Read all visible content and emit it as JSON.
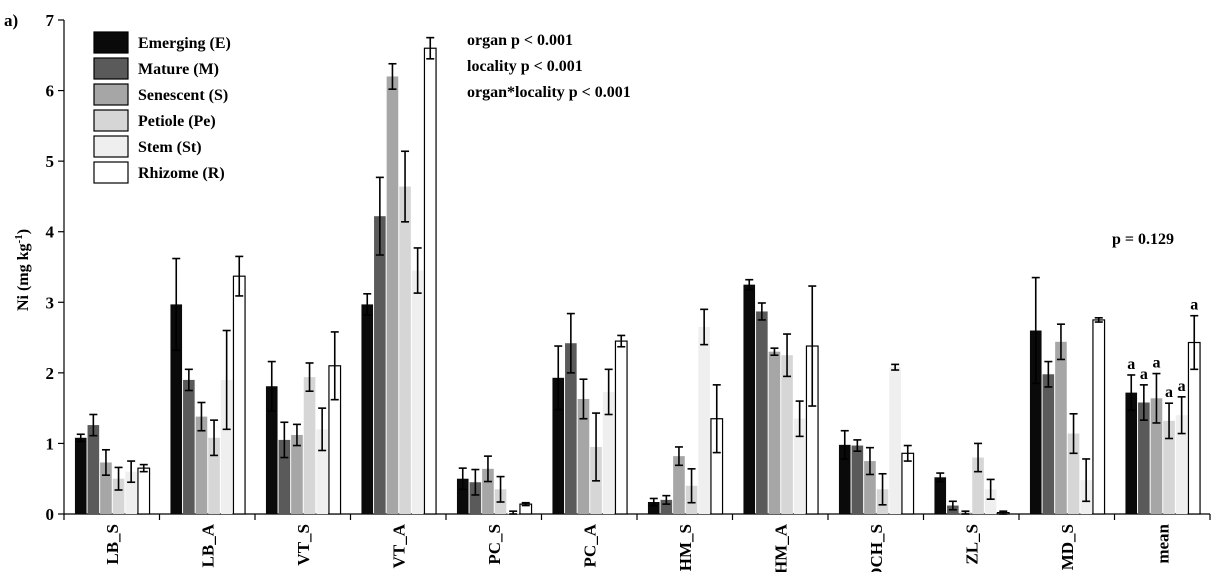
{
  "panel_label": "a)",
  "chart_data": {
    "type": "bar",
    "ylabel_main": "Ni (mg kg",
    "ylabel_sup": "-1",
    "ylabel_close": ")",
    "ylim": [
      0,
      7
    ],
    "yticks": [
      0,
      1,
      2,
      3,
      4,
      5,
      6,
      7
    ],
    "categories": [
      "LB_S",
      "LB_A",
      "VT_S",
      "VT_A",
      "PC_S",
      "PC_A",
      "HM_S",
      "HM_A",
      "OCH_S",
      "ZL_S",
      "MD_S",
      "mean"
    ],
    "series": [
      {
        "name": "Emerging (E)",
        "color": "#0a0a0a",
        "values": [
          1.08,
          2.97,
          1.81,
          2.97,
          0.5,
          1.93,
          0.17,
          3.25,
          0.98,
          0.52,
          2.6,
          1.72
        ],
        "errors": [
          0.05,
          0.65,
          0.35,
          0.15,
          0.15,
          0.45,
          0.05,
          0.07,
          0.2,
          0.06,
          0.75,
          0.25
        ]
      },
      {
        "name": "Mature (M)",
        "color": "#5a5a5a",
        "values": [
          1.26,
          1.9,
          1.05,
          4.22,
          0.45,
          2.42,
          0.2,
          2.87,
          0.97,
          0.12,
          1.98,
          1.58
        ],
        "errors": [
          0.15,
          0.15,
          0.25,
          0.55,
          0.18,
          0.42,
          0.06,
          0.12,
          0.08,
          0.06,
          0.18,
          0.25
        ]
      },
      {
        "name": "Senescent (S)",
        "color": "#a6a6a6",
        "values": [
          0.73,
          1.38,
          1.12,
          6.2,
          0.64,
          1.63,
          0.82,
          2.3,
          0.75,
          0.02,
          2.44,
          1.64
        ],
        "errors": [
          0.18,
          0.2,
          0.15,
          0.18,
          0.18,
          0.28,
          0.13,
          0.05,
          0.19,
          0.02,
          0.25,
          0.35
        ]
      },
      {
        "name": "Petiole (Pe)",
        "color": "#d6d6d6",
        "values": [
          0.5,
          1.08,
          1.94,
          4.64,
          0.35,
          0.95,
          0.4,
          2.25,
          0.35,
          0.8,
          1.14,
          1.32
        ],
        "errors": [
          0.16,
          0.25,
          0.2,
          0.5,
          0.18,
          0.48,
          0.24,
          0.3,
          0.22,
          0.2,
          0.28,
          0.25
        ]
      },
      {
        "name": "Stem (St)",
        "color": "#efefef",
        "values": [
          0.6,
          1.9,
          1.2,
          3.45,
          0.02,
          1.73,
          2.65,
          1.35,
          2.08,
          0.35,
          0.48,
          1.4
        ],
        "errors": [
          0.15,
          0.7,
          0.3,
          0.32,
          0.02,
          0.32,
          0.25,
          0.25,
          0.04,
          0.14,
          0.3,
          0.26
        ]
      },
      {
        "name": "Rhizome (R)",
        "color": "#ffffff",
        "values": [
          0.65,
          3.37,
          2.1,
          6.6,
          0.14,
          2.45,
          1.35,
          2.38,
          0.86,
          0.02,
          2.75,
          2.43
        ],
        "errors": [
          0.05,
          0.28,
          0.48,
          0.15,
          0.02,
          0.08,
          0.48,
          0.85,
          0.11,
          0.02,
          0.03,
          0.38
        ]
      }
    ],
    "mean_letters": [
      "a",
      "a",
      "a",
      "a",
      "a",
      "a"
    ],
    "annotations": {
      "stats_organ": "organ p < 0.001",
      "stats_locality": "locality p < 0.001",
      "stats_interaction": "organ*locality p < 0.001",
      "p_mean": "p = 0.129"
    }
  }
}
